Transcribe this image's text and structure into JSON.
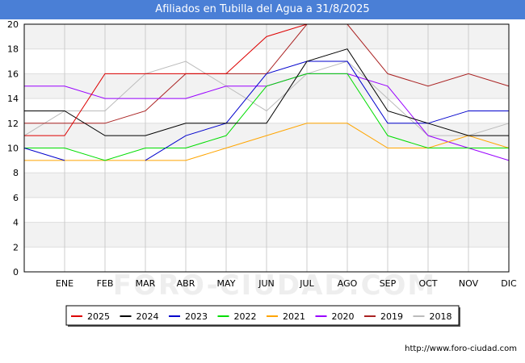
{
  "chart_data": {
    "type": "line",
    "title": "Afiliados en Tubilla del Agua a 31/8/2025",
    "categories": [
      "ENE",
      "FEB",
      "MAR",
      "ABR",
      "MAY",
      "JUN",
      "JUL",
      "AGO",
      "SEP",
      "OCT",
      "NOV",
      "DIC"
    ],
    "ylim": [
      0,
      20
    ],
    "yticks": [
      0,
      2,
      4,
      6,
      8,
      10,
      12,
      14,
      16,
      18,
      20
    ],
    "grid": true,
    "legend_position": "bottom",
    "series": [
      {
        "name": "2025",
        "color": "#dd0000",
        "values": [
          11,
          16,
          16,
          16,
          16,
          19,
          20,
          20,
          null,
          null,
          null,
          null
        ]
      },
      {
        "name": "2024",
        "color": "#000000",
        "values": [
          13,
          11,
          11,
          12,
          12,
          12,
          17,
          18,
          13,
          12,
          11,
          11
        ]
      },
      {
        "name": "2023",
        "color": "#0000cc",
        "values": [
          9,
          null,
          9,
          11,
          12,
          16,
          17,
          17,
          12,
          12,
          13,
          13
        ]
      },
      {
        "name": "2022",
        "color": "#00dd00",
        "values": [
          10,
          9,
          10,
          10,
          11,
          15,
          16,
          16,
          11,
          10,
          10,
          10
        ]
      },
      {
        "name": "2021",
        "color": "#ffa500",
        "values": [
          9,
          9,
          9,
          9,
          10,
          11,
          12,
          12,
          10,
          10,
          11,
          10
        ]
      },
      {
        "name": "2020",
        "color": "#9900ff",
        "values": [
          15,
          14,
          14,
          14,
          15,
          15,
          16,
          16,
          15,
          11,
          10,
          9
        ]
      },
      {
        "name": "2019",
        "color": "#aa2222",
        "values": [
          12,
          12,
          13,
          16,
          16,
          16,
          20,
          20,
          16,
          15,
          16,
          15
        ]
      },
      {
        "name": "2018",
        "color": "#bbbbbb",
        "values": [
          13,
          13,
          16,
          17,
          15,
          13,
          16,
          17,
          14,
          11,
          11,
          12
        ]
      }
    ],
    "start_values": {
      "2025": 11,
      "2024": 13,
      "2023": 10,
      "2022": 10,
      "2021": 9,
      "2020": 15,
      "2019": 12,
      "2018": 11
    }
  },
  "source": "http://www.foro-ciudad.com",
  "watermark": "FORO-CIUDAD.COM"
}
